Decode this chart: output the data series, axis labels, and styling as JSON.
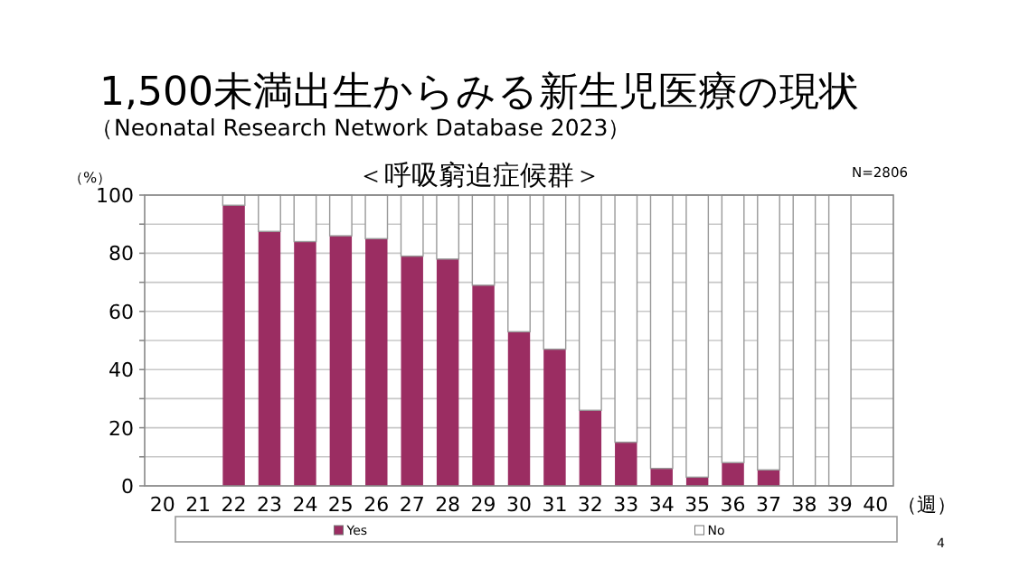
{
  "chart_data": {
    "type": "bar",
    "stacked": true,
    "title": "1,500未満出生からみる新生児医療の現状",
    "subtitle": "（Neonatal Research Network Database 2023）",
    "ylabel": "（%）",
    "xlabel": "（週）",
    "annotations": [
      "＜呼吸窮迫症候群＞",
      "N=2806",
      "4"
    ],
    "categories": [
      "20",
      "21",
      "22",
      "23",
      "24",
      "25",
      "26",
      "27",
      "28",
      "29",
      "30",
      "31",
      "32",
      "33",
      "34",
      "35",
      "36",
      "37",
      "38",
      "39",
      "40"
    ],
    "series": [
      {
        "name": "Yes",
        "color": "#9b2d62",
        "values": [
          null,
          null,
          96.5,
          87.5,
          84,
          86,
          85,
          79,
          78,
          69,
          53,
          47,
          26,
          15,
          6,
          3,
          8,
          5.5,
          0,
          0,
          null
        ]
      },
      {
        "name": "No",
        "color": "#ffffff",
        "values": [
          null,
          null,
          3.5,
          12.5,
          16,
          14,
          15,
          21,
          22,
          31,
          47,
          53,
          74,
          85,
          94,
          97,
          92,
          94.5,
          100,
          100,
          null
        ]
      }
    ],
    "ylim": [
      0,
      100
    ],
    "yticks": [
      0,
      {
        "value": 10,
        "label": null
      },
      20,
      {
        "value": 30,
        "label": null
      },
      40,
      {
        "value": 50,
        "label": null
      },
      60,
      {
        "value": 70,
        "label": null
      },
      80,
      {
        "value": 90,
        "label": null
      },
      100
    ],
    "grid": "y",
    "legend": "bottom"
  }
}
